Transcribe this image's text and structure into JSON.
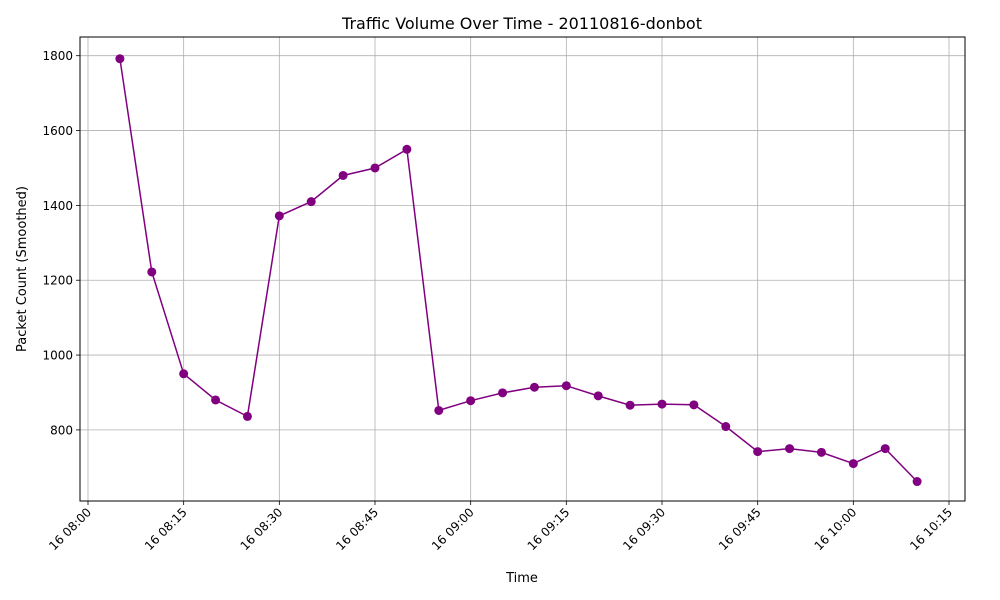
{
  "chart_data": {
    "type": "line",
    "title": "Traffic Volume Over Time - 20110816-donbot",
    "xlabel": "Time",
    "ylabel": "Packet Count (Smoothed)",
    "grid": true,
    "x_ticks": [
      "16 08:00",
      "16 08:15",
      "16 08:30",
      "16 08:45",
      "16 09:00",
      "16 09:15",
      "16 09:30",
      "16 09:45",
      "16 10:00",
      "16 10:15"
    ],
    "y_ticks": [
      800,
      1000,
      1200,
      1400,
      1600,
      1800
    ],
    "ylim": [
      610,
      1850
    ],
    "xlim": [
      "16 08:00",
      "16 10:15"
    ],
    "color": "#800080",
    "series": [
      {
        "x": [
          "16 08:05",
          "16 08:10",
          "16 08:15",
          "16 08:20",
          "16 08:25",
          "16 08:30",
          "16 08:35",
          "16 08:40",
          "16 08:45",
          "16 08:50",
          "16 08:55",
          "16 09:00",
          "16 09:05",
          "16 09:10",
          "16 09:15",
          "16 09:20",
          "16 09:25",
          "16 09:30",
          "16 09:35",
          "16 09:40",
          "16 09:45",
          "16 09:50",
          "16 09:55",
          "16 10:00",
          "16 10:05",
          "16 10:10"
        ],
        "values": [
          1792,
          1222,
          950,
          880,
          836,
          1372,
          1410,
          1480,
          1500,
          1550,
          852,
          878,
          899,
          914,
          918,
          891,
          866,
          869,
          867,
          809,
          742,
          750,
          740,
          710,
          750,
          662
        ]
      }
    ]
  }
}
